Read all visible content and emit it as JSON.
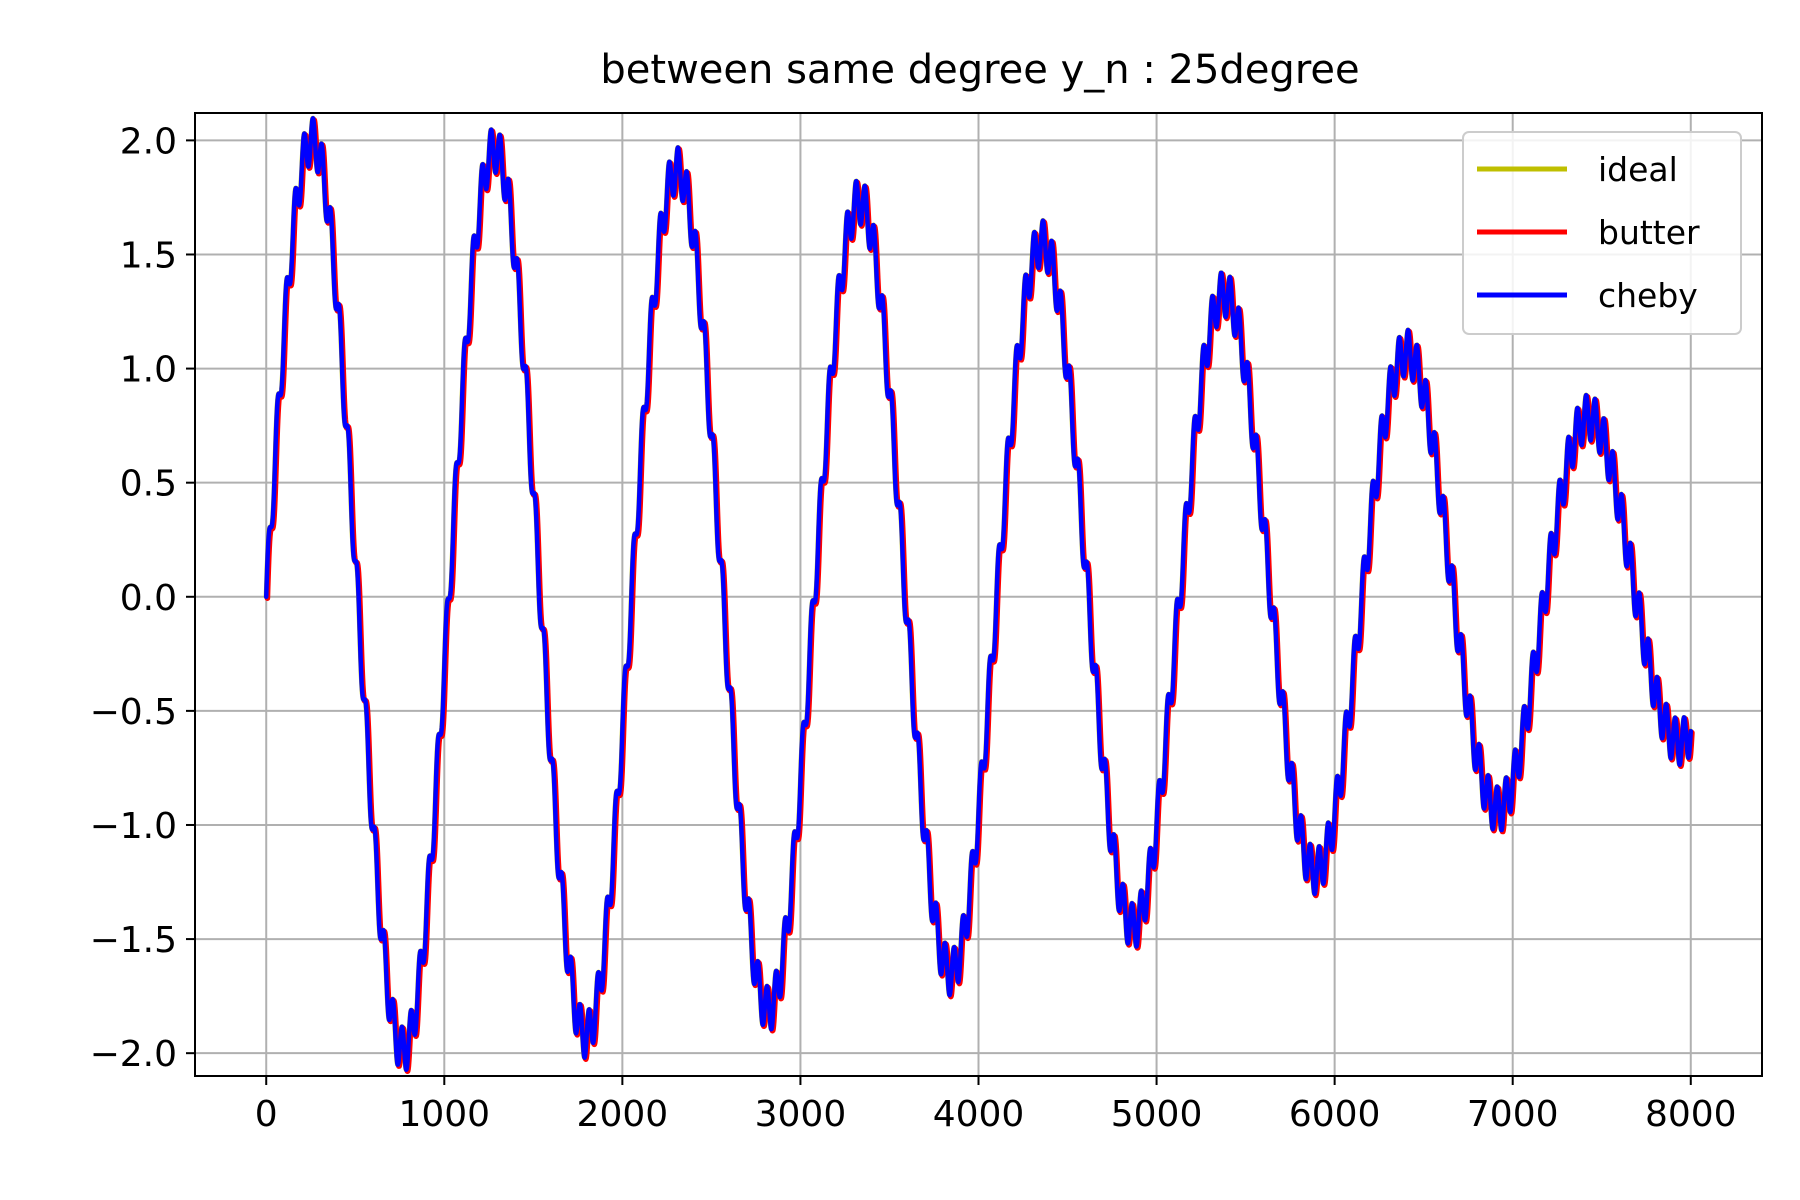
{
  "chart_data": {
    "type": "line",
    "title": "between same degree y_n : 25degree",
    "xlabel": "",
    "ylabel": "",
    "xlim": [
      -400,
      8400
    ],
    "ylim": [
      -2.1,
      2.12
    ],
    "grid": true,
    "legend_position": "top-right",
    "x_ticks": [
      0,
      1000,
      2000,
      3000,
      4000,
      5000,
      6000,
      7000,
      8000
    ],
    "x_tick_labels": [
      "0",
      "1000",
      "2000",
      "3000",
      "4000",
      "5000",
      "6000",
      "7000",
      "8000"
    ],
    "y_ticks": [
      2.0,
      1.5,
      1.0,
      0.5,
      0.0,
      -0.5,
      -1.0,
      -1.5,
      -2.0
    ],
    "y_tick_labels": [
      "2.0",
      "1.5",
      "1.0",
      "0.5",
      "0.0",
      "−0.5",
      "−1.0",
      "−1.5",
      "−2.0"
    ],
    "signal": {
      "n_min": 0,
      "n_max": 8000,
      "components": [
        {
          "amplitude": 1.0,
          "period": 1000
        },
        {
          "amplitude": 1.0,
          "period": 1052.6
        },
        {
          "amplitude": 0.1,
          "period": 50
        }
      ],
      "description": "sum of sinusoids rendered identically for all three filters"
    },
    "series": [
      {
        "name": "ideal",
        "color": "#bfbf00"
      },
      {
        "name": "butter",
        "color": "#ff0000"
      },
      {
        "name": "cheby",
        "color": "#0000ff"
      }
    ]
  }
}
